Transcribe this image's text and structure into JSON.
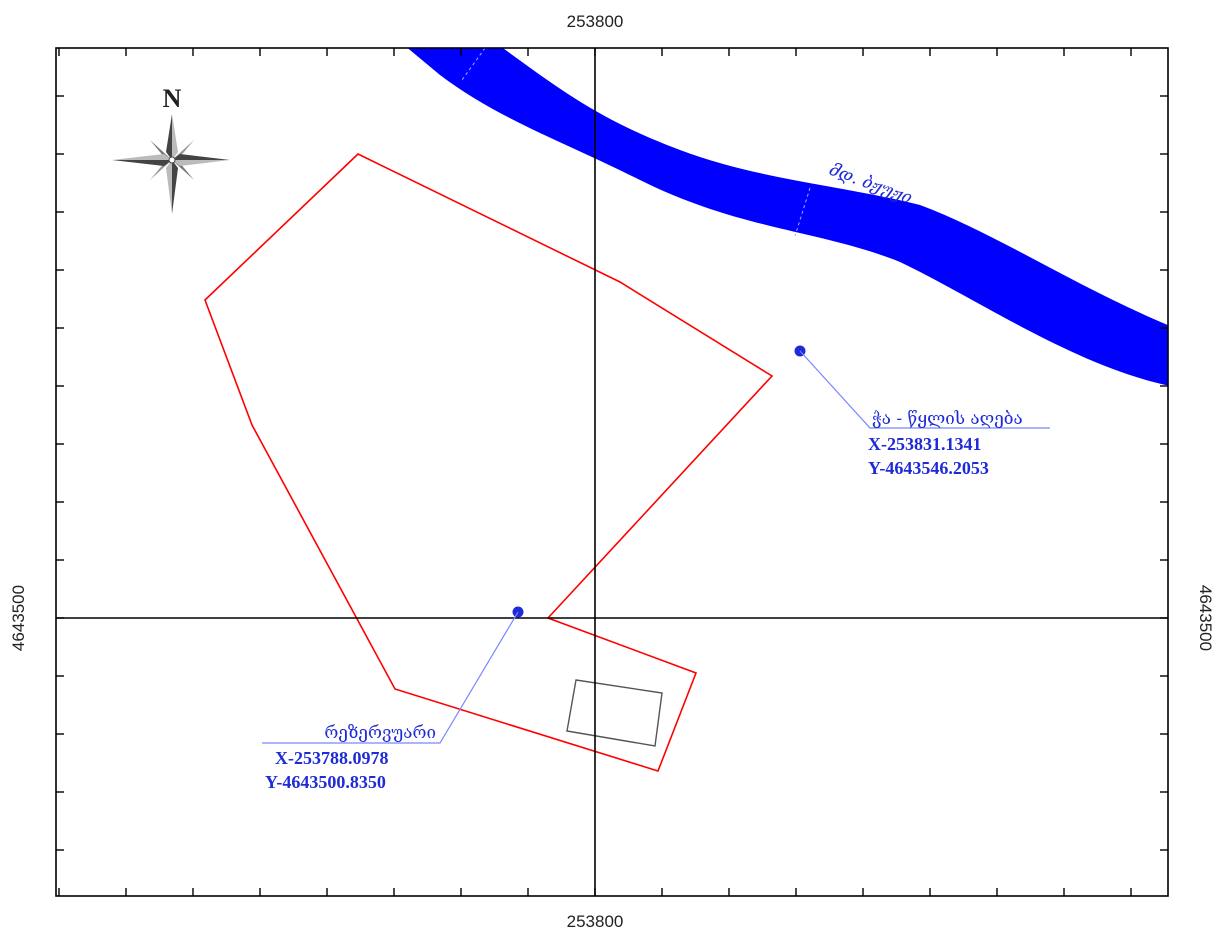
{
  "grid": {
    "x_label_top": "253800",
    "x_label_bottom": "253800",
    "y_label_left": "4643500",
    "y_label_right": "4643500"
  },
  "north_arrow": {
    "label": "N",
    "icon": "compass-rose-icon"
  },
  "river": {
    "label": "მდ. ბჟუჟი",
    "color": "#0000ff"
  },
  "parcel": {
    "color": "#ff0000"
  },
  "building": {
    "color": "#555555"
  },
  "points": [
    {
      "id": "water-intake",
      "name": "ჭა - წყლის აღება",
      "x": "X-253831.1341",
      "y": "Y-4643546.2053"
    },
    {
      "id": "reservoir",
      "name": "რეზერვუარი",
      "x": "X-253788.0978",
      "y": "Y-4643500.8350"
    }
  ],
  "colors": {
    "accent_blue": "#1f2bd6",
    "frame": "#000000"
  }
}
